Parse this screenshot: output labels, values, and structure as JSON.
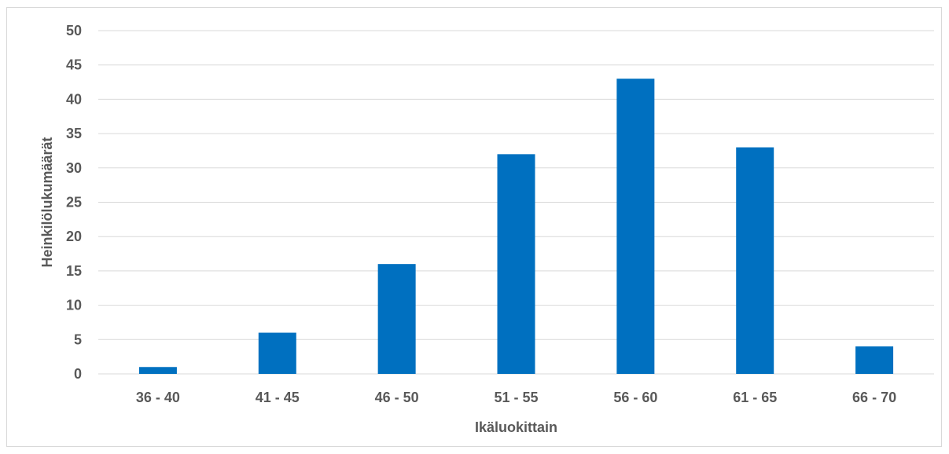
{
  "chart_data": {
    "type": "bar",
    "categories": [
      "36 - 40",
      "41 - 45",
      "46 - 50",
      "51 - 55",
      "56 - 60",
      "61 - 65",
      "66 - 70"
    ],
    "values": [
      1,
      6,
      16,
      32,
      43,
      33,
      4
    ],
    "title": "",
    "xlabel": "Ikäluokittain",
    "ylabel": "Heinkilölukumäärät",
    "ylim": [
      0,
      50
    ],
    "yticks": [
      0,
      5,
      10,
      15,
      20,
      25,
      30,
      35,
      40,
      45,
      50
    ],
    "grid": true,
    "legend": "none",
    "bar_color": "#0070c0",
    "grid_color": "#d9d9d9",
    "text_color": "#595959"
  }
}
